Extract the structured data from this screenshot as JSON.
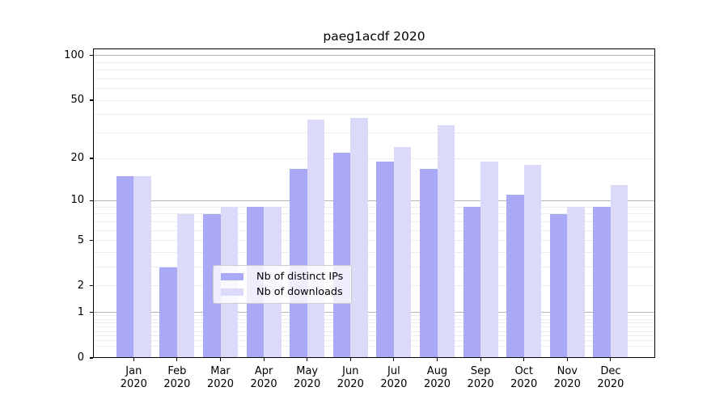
{
  "chart_data": {
    "type": "bar",
    "title": "paeg1acdf 2020",
    "categories": [
      "Jan",
      "Feb",
      "Mar",
      "Apr",
      "May",
      "Jun",
      "Jul",
      "Aug",
      "Sep",
      "Oct",
      "Nov",
      "Dec"
    ],
    "category_year": "2020",
    "series": [
      {
        "name": "Nb of distinct IPs",
        "color": "#a9a9f6",
        "values": [
          15,
          3,
          8,
          9,
          17,
          22,
          19,
          17,
          9,
          11,
          8,
          9
        ]
      },
      {
        "name": "Nb of downloads",
        "color": "#dbdbf9",
        "values": [
          15,
          8,
          9,
          9,
          37,
          38,
          24,
          34,
          19,
          18,
          9,
          13
        ]
      }
    ],
    "xlabel": "",
    "ylabel": "",
    "yscale": "log10(1+y)",
    "ylim": [
      0,
      112
    ],
    "yticks": [
      0,
      1,
      2,
      5,
      10,
      20,
      50,
      100
    ],
    "major_gridlines": [
      1,
      10,
      100
    ],
    "minor_gridlines": [
      0.2,
      0.3,
      0.4,
      0.5,
      0.6,
      0.7,
      0.8,
      0.9,
      2,
      3,
      4,
      5,
      6,
      7,
      8,
      9,
      20,
      30,
      40,
      50,
      60,
      70,
      80,
      90
    ],
    "grid": true,
    "legend_position": "lower center"
  },
  "colors": {
    "background": "#ffffff",
    "axis": "#000000",
    "major_grid": "#b5b5b5",
    "minor_grid": "#ececec",
    "legend_border": "#cccccc",
    "text": "#000000"
  }
}
